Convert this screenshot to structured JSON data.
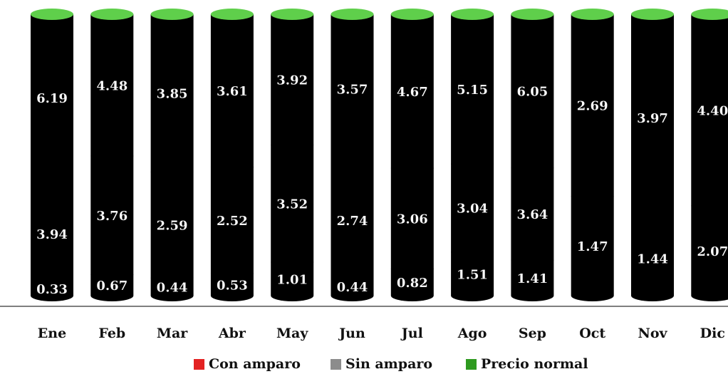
{
  "chart_data": {
    "type": "bar",
    "stacked": true,
    "style": "3d-cylinder",
    "categories": [
      "Ene",
      "Feb",
      "Mar",
      "Abr",
      "May",
      "Jun",
      "Jul",
      "Ago",
      "Sep",
      "Oct",
      "Nov",
      "Dic"
    ],
    "series": [
      {
        "name": "Con amparo",
        "color": "#e32222",
        "values": [
          0.33,
          0.67,
          0.44,
          0.53,
          1.01,
          0.44,
          0.82,
          1.51,
          1.41,
          null,
          null,
          null
        ]
      },
      {
        "name": "Sin amparo",
        "color": "#8c8c8c",
        "values": [
          3.94,
          3.76,
          2.59,
          2.52,
          3.52,
          2.74,
          3.06,
          3.04,
          3.64,
          1.47,
          1.44,
          2.07
        ]
      },
      {
        "name": "Precio normal",
        "color": "#2e9a1f",
        "values": [
          6.19,
          4.48,
          3.85,
          3.61,
          3.92,
          3.57,
          4.67,
          5.15,
          6.05,
          2.69,
          3.97,
          4.4
        ]
      }
    ],
    "value_labels": [
      [
        "0.33",
        "0.67",
        "0.44",
        "0.53",
        "1.01",
        "0.44",
        "0.82",
        "1.51",
        "1.41",
        "",
        "",
        ""
      ],
      [
        "3.94",
        "3.76",
        "2.59",
        "2.52",
        "3.52",
        "2.74",
        "3.06",
        "3.04",
        "3.64",
        "1.47",
        "1.44",
        "2.07"
      ],
      [
        "6.19",
        "4.48",
        "3.85",
        "3.61",
        "3.92",
        "3.57",
        "4.67",
        "5.15",
        "6.05",
        "2.69",
        "3.97",
        "4.40"
      ]
    ],
    "percent_stacked": true,
    "title": "",
    "xlabel": "",
    "ylabel": "",
    "legend_position": "bottom",
    "grid": false
  }
}
